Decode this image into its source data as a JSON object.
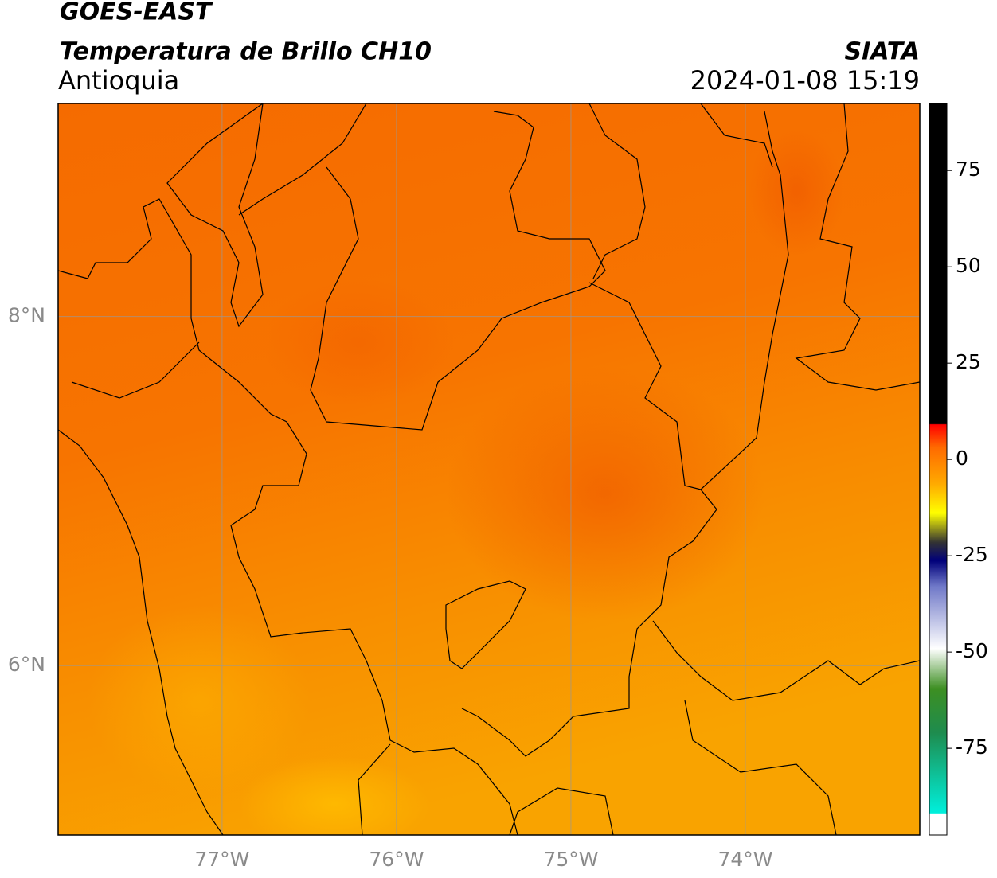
{
  "header": {
    "title_line1": "GOES-EAST",
    "title_line2": "Temperatura de Brillo CH10",
    "region": "Antioquia",
    "source": "SIATA",
    "datetime": "2024-01-08 15:19"
  },
  "map": {
    "lon_lim": [
      -77.94,
      -73.0
    ],
    "lat_lim": [
      5.03,
      9.22
    ],
    "lon_ticks": [
      {
        "value": -77,
        "label": "77°W"
      },
      {
        "value": -76,
        "label": "76°W"
      },
      {
        "value": -75,
        "label": "75°W"
      },
      {
        "value": -74,
        "label": "74°W"
      }
    ],
    "lat_ticks": [
      {
        "value": 8,
        "label": "8°N"
      },
      {
        "value": 6,
        "label": "6°N"
      }
    ]
  },
  "colorbar": {
    "lim": [
      -97.5,
      92.4
    ],
    "ticks": [
      75,
      50,
      25,
      0,
      -25,
      -50,
      -75
    ]
  }
}
